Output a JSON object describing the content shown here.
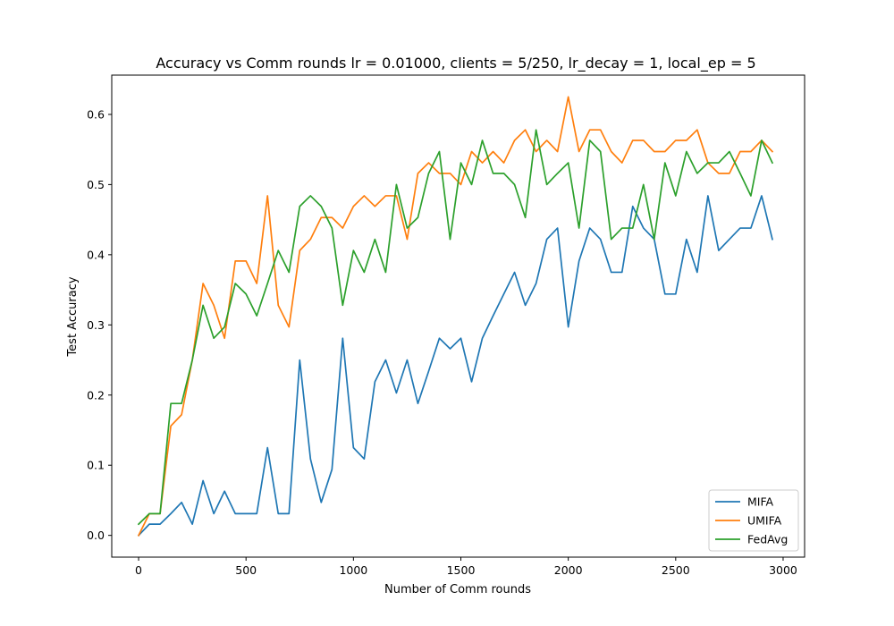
{
  "chart_data": {
    "type": "line",
    "title": "Accuracy vs Comm rounds lr = 0.01000, clients = 5/250, lr_decay = 1, local_ep = 5",
    "xlabel": "Number of Comm rounds",
    "ylabel": "Test Accuracy",
    "xlim": [
      -125,
      3100
    ],
    "ylim": [
      -0.031,
      0.656
    ],
    "xticks": [
      0,
      500,
      1000,
      1500,
      2000,
      2500,
      3000
    ],
    "yticks": [
      0.0,
      0.1,
      0.2,
      0.3,
      0.4,
      0.5,
      0.6
    ],
    "xtick_labels": [
      "0",
      "500",
      "1000",
      "1500",
      "2000",
      "2500",
      "3000"
    ],
    "ytick_labels": [
      "0.0",
      "0.1",
      "0.2",
      "0.3",
      "0.4",
      "0.5",
      "0.6"
    ],
    "grid": false,
    "legend_position": "lower-right",
    "x": [
      0,
      50,
      100,
      150,
      200,
      250,
      300,
      350,
      400,
      450,
      500,
      550,
      600,
      650,
      700,
      750,
      800,
      850,
      900,
      950,
      1000,
      1050,
      1100,
      1150,
      1200,
      1250,
      1300,
      1350,
      1400,
      1450,
      1500,
      1550,
      1600,
      1650,
      1700,
      1750,
      1800,
      1850,
      1900,
      1950,
      2000,
      2050,
      2100,
      2150,
      2200,
      2250,
      2300,
      2350,
      2400,
      2450,
      2500,
      2550,
      2600,
      2650,
      2700,
      2750,
      2800,
      2850,
      2900,
      2950
    ],
    "series": [
      {
        "name": "MIFA",
        "color": "#1f77b4",
        "values": [
          0.0,
          0.016,
          0.016,
          0.031,
          0.047,
          0.016,
          0.078,
          0.031,
          0.063,
          0.031,
          0.031,
          0.031,
          0.125,
          0.031,
          0.031,
          0.25,
          0.109,
          0.047,
          0.094,
          0.281,
          0.125,
          0.109,
          0.219,
          0.25,
          0.203,
          0.25,
          0.188,
          0.234,
          0.281,
          0.266,
          0.281,
          0.219,
          0.281,
          0.313,
          0.344,
          0.375,
          0.328,
          0.359,
          0.422,
          0.438,
          0.297,
          0.391,
          0.438,
          0.422,
          0.375,
          0.375,
          0.469,
          0.438,
          0.422,
          0.344,
          0.344,
          0.422,
          0.375,
          0.484,
          0.406,
          0.422,
          0.438,
          0.438,
          0.484,
          0.422
        ]
      },
      {
        "name": "UMIFA",
        "color": "#ff7f0e",
        "values": [
          0.0,
          0.031,
          0.031,
          0.156,
          0.172,
          0.25,
          0.359,
          0.328,
          0.281,
          0.391,
          0.391,
          0.359,
          0.484,
          0.328,
          0.297,
          0.406,
          0.422,
          0.453,
          0.453,
          0.438,
          0.469,
          0.484,
          0.469,
          0.484,
          0.484,
          0.422,
          0.516,
          0.531,
          0.516,
          0.516,
          0.5,
          0.547,
          0.531,
          0.547,
          0.531,
          0.563,
          0.578,
          0.547,
          0.563,
          0.547,
          0.625,
          0.547,
          0.578,
          0.578,
          0.547,
          0.531,
          0.563,
          0.563,
          0.547,
          0.547,
          0.563,
          0.563,
          0.578,
          0.531,
          0.516,
          0.516,
          0.547,
          0.547,
          0.563,
          0.547
        ]
      },
      {
        "name": "FedAvg",
        "color": "#2ca02c",
        "values": [
          0.016,
          0.031,
          0.031,
          0.188,
          0.188,
          0.25,
          0.328,
          0.281,
          0.297,
          0.359,
          0.344,
          0.313,
          0.359,
          0.406,
          0.375,
          0.469,
          0.484,
          0.469,
          0.438,
          0.328,
          0.406,
          0.375,
          0.422,
          0.375,
          0.5,
          0.438,
          0.453,
          0.516,
          0.547,
          0.422,
          0.531,
          0.5,
          0.563,
          0.516,
          0.516,
          0.5,
          0.453,
          0.578,
          0.5,
          0.516,
          0.531,
          0.438,
          0.563,
          0.547,
          0.422,
          0.438,
          0.438,
          0.5,
          0.422,
          0.531,
          0.484,
          0.547,
          0.516,
          0.531,
          0.531,
          0.547,
          0.516,
          0.484,
          0.563,
          0.531
        ]
      }
    ]
  }
}
